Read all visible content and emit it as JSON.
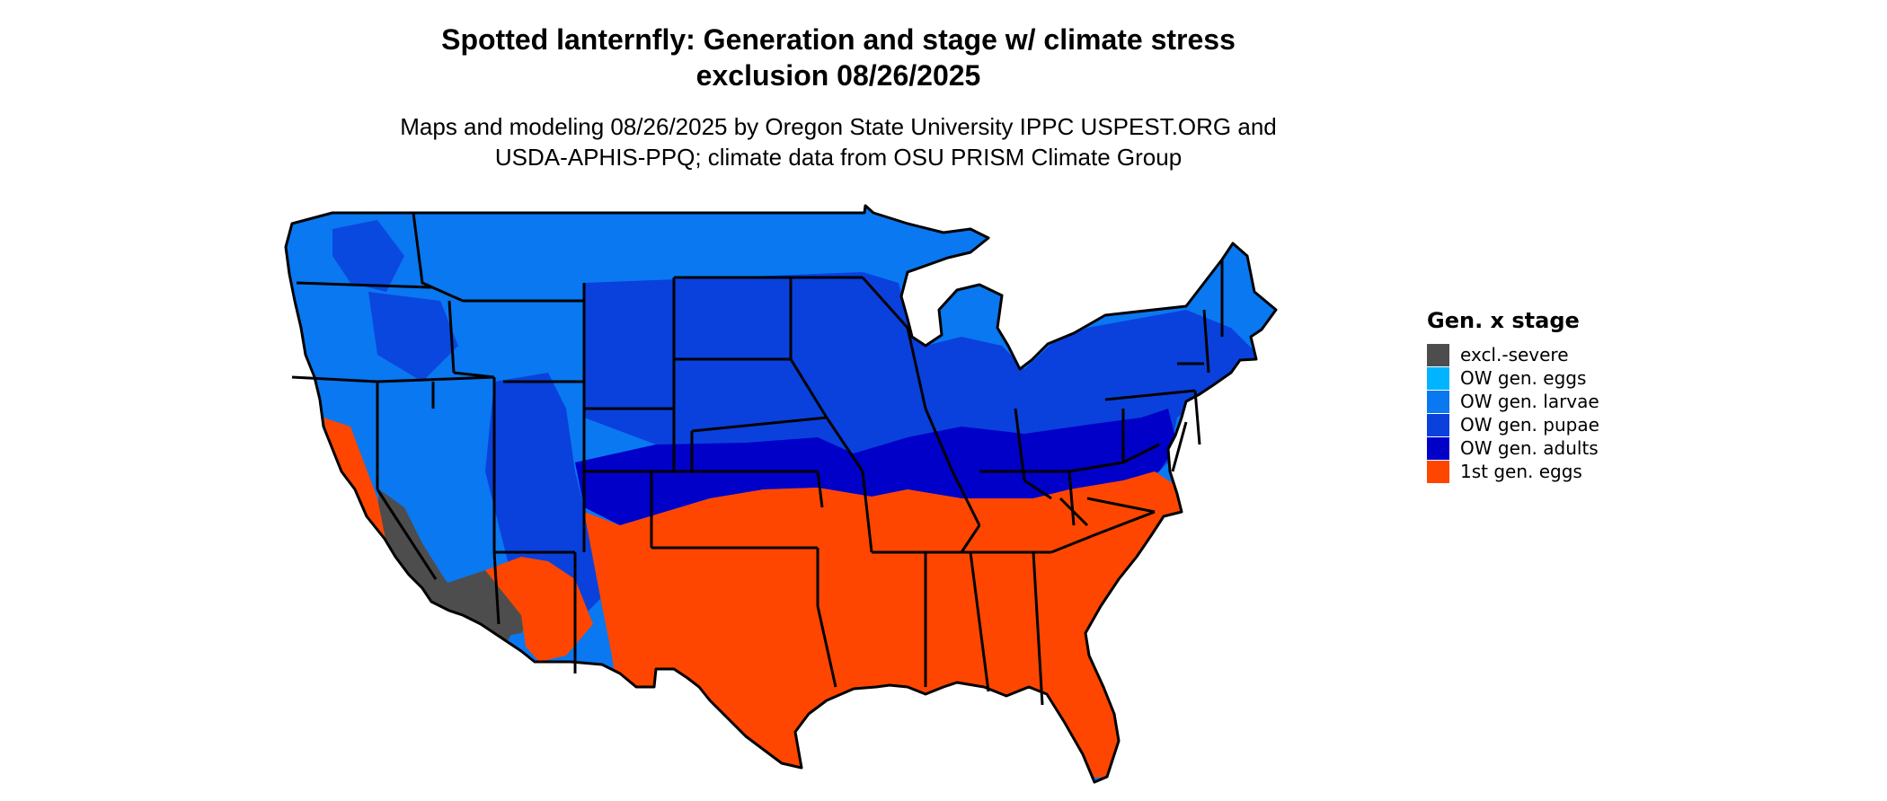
{
  "title_line1": "Spotted lanternfly: Generation and stage w/ climate stress",
  "title_line2": "exclusion 08/26/2025",
  "subtitle_line1": "Maps and modeling 08/26/2025 by Oregon State University IPPC USPEST.ORG and",
  "subtitle_line2": "USDA-APHIS-PPQ; climate data from OSU PRISM Climate Group",
  "legend": {
    "title": "Gen. x stage",
    "items": [
      {
        "label": "excl.-severe",
        "color": "#4d4d4d"
      },
      {
        "label": "OW gen. eggs",
        "color": "#00b4ff"
      },
      {
        "label": "OW gen. larvae",
        "color": "#0a78f0"
      },
      {
        "label": "OW gen. pupae",
        "color": "#0a41dc"
      },
      {
        "label": "OW gen. adults",
        "color": "#0000c8"
      },
      {
        "label": "1st gen. eggs",
        "color": "#ff4600"
      }
    ]
  }
}
